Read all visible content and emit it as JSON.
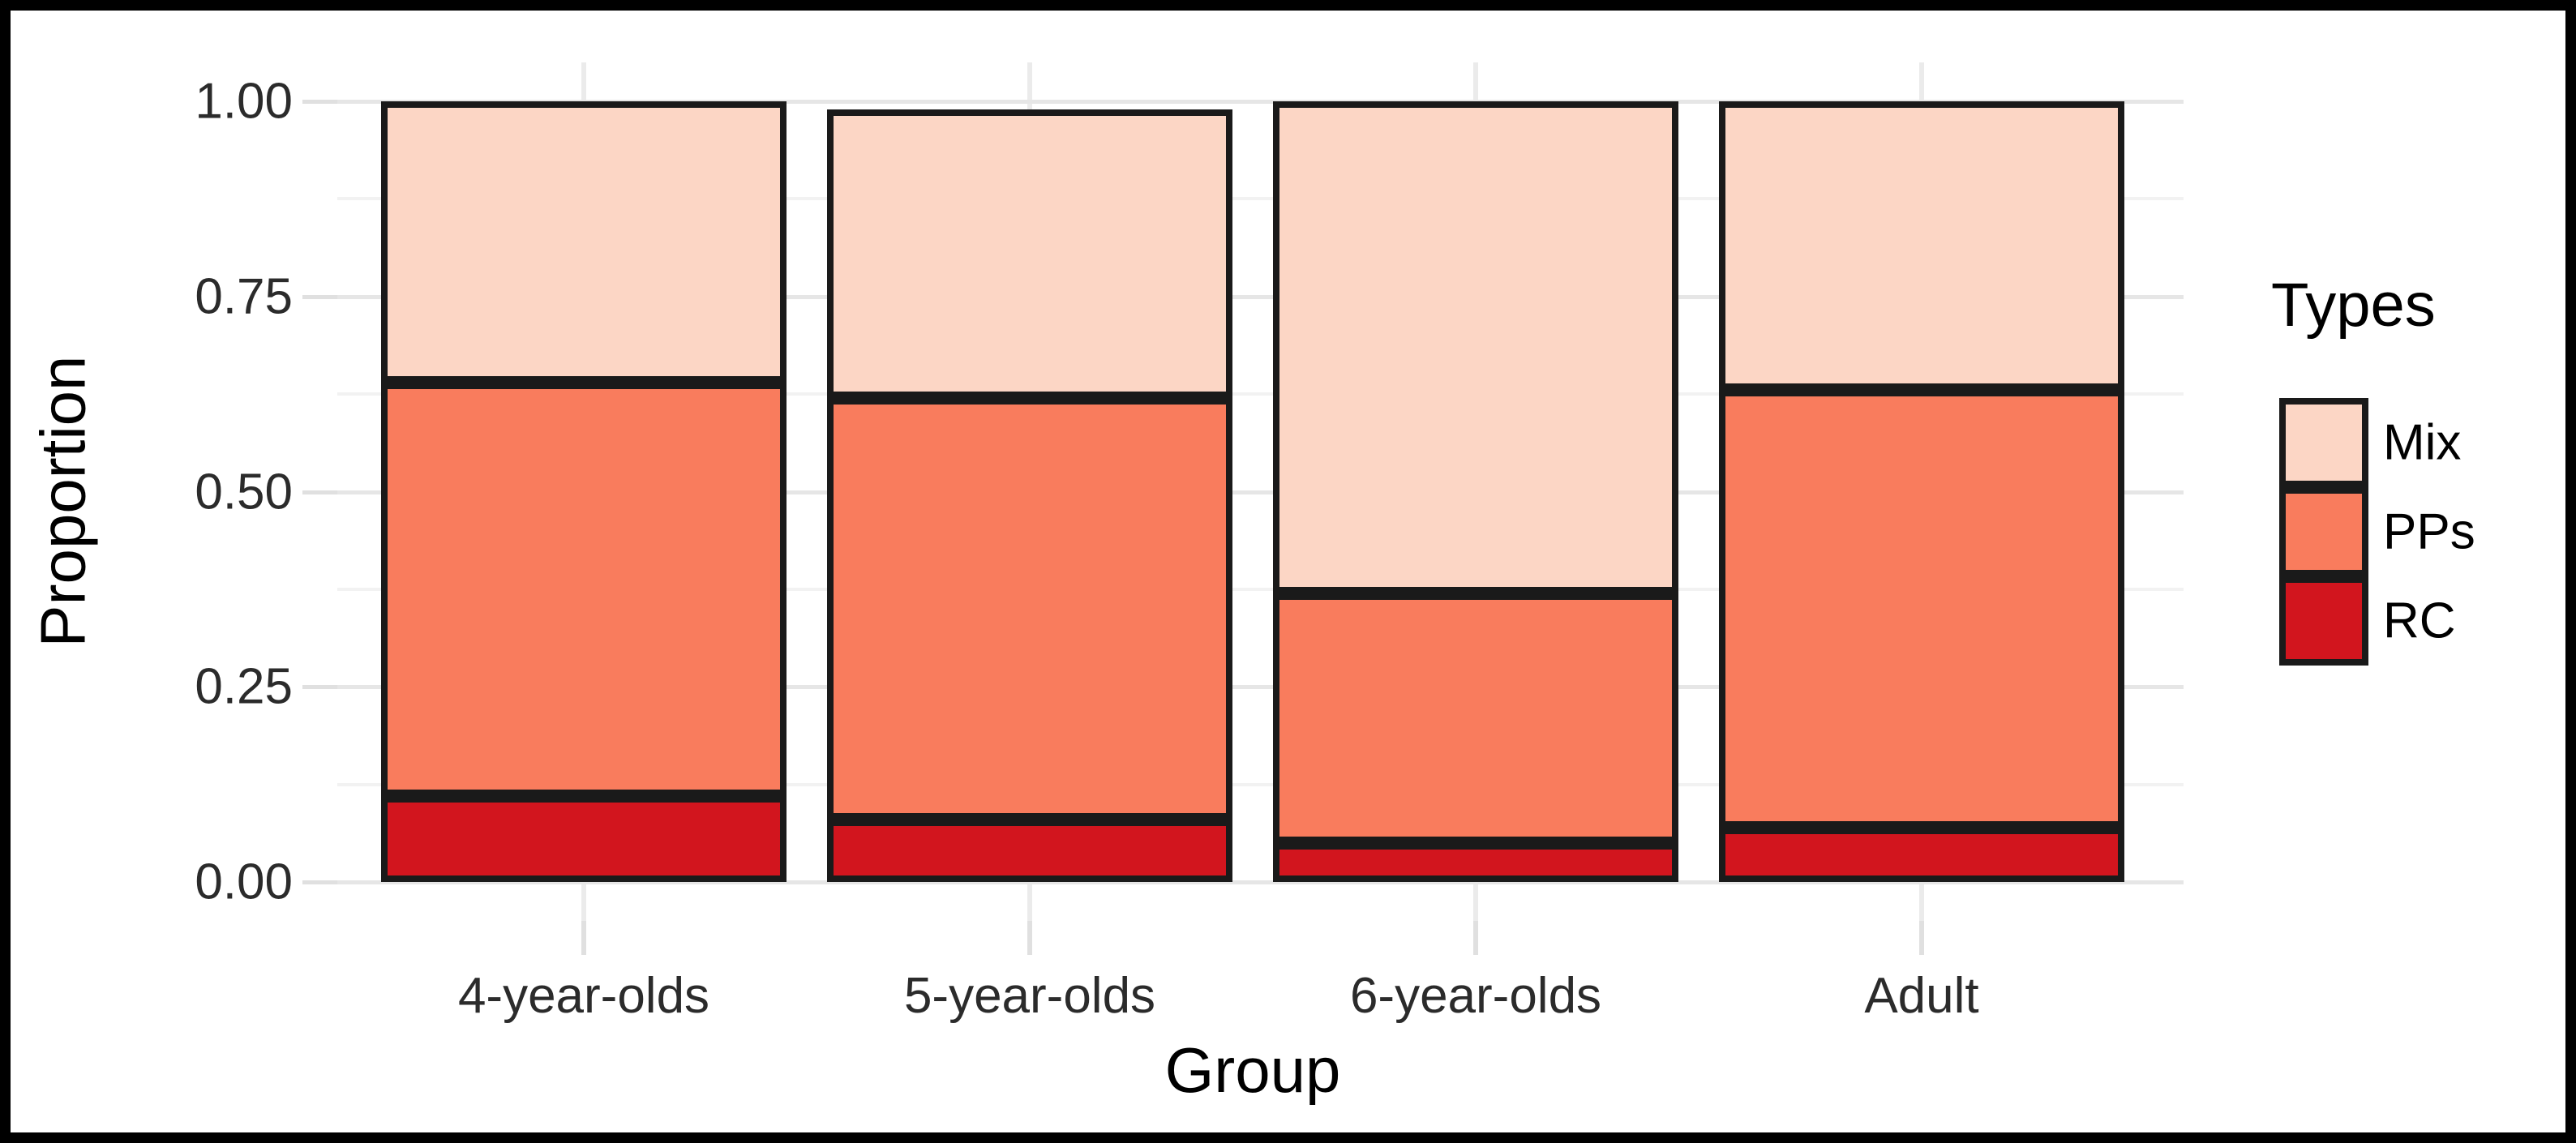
{
  "figure": {
    "y_axis": {
      "title": "Proportion",
      "major_tick_labels": [
        "1.00",
        "0.75",
        "0.50",
        "0.25",
        "0.00"
      ],
      "major_tick_values": [
        1.0,
        0.75,
        0.5,
        0.25,
        0.0
      ],
      "minor_tick_values": [
        0.875,
        0.625,
        0.375,
        0.125
      ]
    },
    "x_axis": {
      "title": "Group",
      "tick_labels": [
        "4-year-olds",
        "5-year-olds",
        "6-year-olds",
        "Adult"
      ]
    },
    "legend": {
      "title": "Types",
      "entries": [
        {
          "label": "Mix",
          "color": "#FCD6C5"
        },
        {
          "label": "PPs",
          "color": "#F97C5D"
        },
        {
          "label": "RC",
          "color": "#D2151E"
        }
      ]
    }
  },
  "chart_data": {
    "type": "bar",
    "stacked": true,
    "categories": [
      "4-year-olds",
      "5-year-olds",
      "6-year-olds",
      "Adult"
    ],
    "series": [
      {
        "name": "RC",
        "color": "#D2151E",
        "values": [
          0.11,
          0.08,
          0.05,
          0.07
        ]
      },
      {
        "name": "PPs",
        "color": "#F97C5D",
        "values": [
          0.53,
          0.54,
          0.32,
          0.56
        ]
      },
      {
        "name": "Mix",
        "color": "#FCD6C5",
        "values": [
          0.36,
          0.37,
          0.63,
          0.37
        ]
      }
    ],
    "stack_totals": [
      1.0,
      0.99,
      1.0,
      1.0
    ],
    "title": "",
    "xlabel": "Group",
    "ylabel": "Proportion",
    "ylim": [
      0,
      1
    ],
    "y_major_ticks": [
      0,
      0.25,
      0.5,
      0.75,
      1.0
    ],
    "y_minor_ticks": [
      0.125,
      0.375,
      0.625,
      0.875
    ],
    "grid": true,
    "legend_position": "right",
    "legend_title": "Types",
    "bar_outline_color": "#1a1a1a",
    "background_color": "#ffffff"
  }
}
